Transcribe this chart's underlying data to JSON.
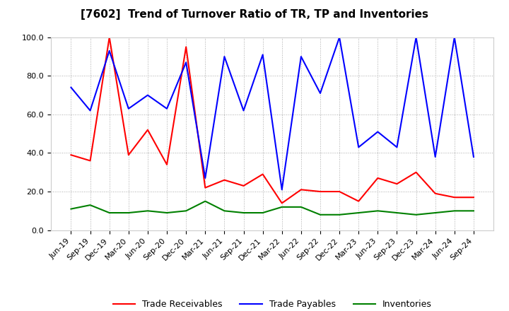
{
  "title": "[7602]  Trend of Turnover Ratio of TR, TP and Inventories",
  "labels": [
    "Jun-19",
    "Sep-19",
    "Dec-19",
    "Mar-20",
    "Jun-20",
    "Sep-20",
    "Dec-20",
    "Mar-21",
    "Jun-21",
    "Sep-21",
    "Dec-21",
    "Mar-22",
    "Jun-22",
    "Sep-22",
    "Dec-22",
    "Mar-23",
    "Jun-23",
    "Sep-23",
    "Dec-23",
    "Mar-24",
    "Jun-24",
    "Sep-24"
  ],
  "trade_receivables": [
    39,
    36,
    100,
    39,
    52,
    34,
    95,
    22,
    26,
    23,
    29,
    14,
    21,
    20,
    20,
    15,
    27,
    24,
    30,
    19,
    17,
    17
  ],
  "trade_payables": [
    74,
    62,
    93,
    63,
    70,
    63,
    87,
    27,
    90,
    62,
    91,
    21,
    90,
    71,
    100,
    43,
    51,
    43,
    100,
    38,
    100,
    38
  ],
  "inventories": [
    11,
    13,
    9,
    9,
    10,
    9,
    10,
    15,
    10,
    9,
    9,
    12,
    12,
    8,
    8,
    9,
    10,
    9,
    8,
    9,
    10,
    10
  ],
  "ylim": [
    0,
    100
  ],
  "yticks": [
    0.0,
    20.0,
    40.0,
    60.0,
    80.0,
    100.0
  ],
  "color_tr": "#ff0000",
  "color_tp": "#0000ff",
  "color_inv": "#008000",
  "legend_tr": "Trade Receivables",
  "legend_tp": "Trade Payables",
  "legend_inv": "Inventories",
  "bg_color": "#ffffff",
  "grid_color": "#aaaaaa",
  "title_fontsize": 11,
  "tick_fontsize": 8,
  "legend_fontsize": 9
}
